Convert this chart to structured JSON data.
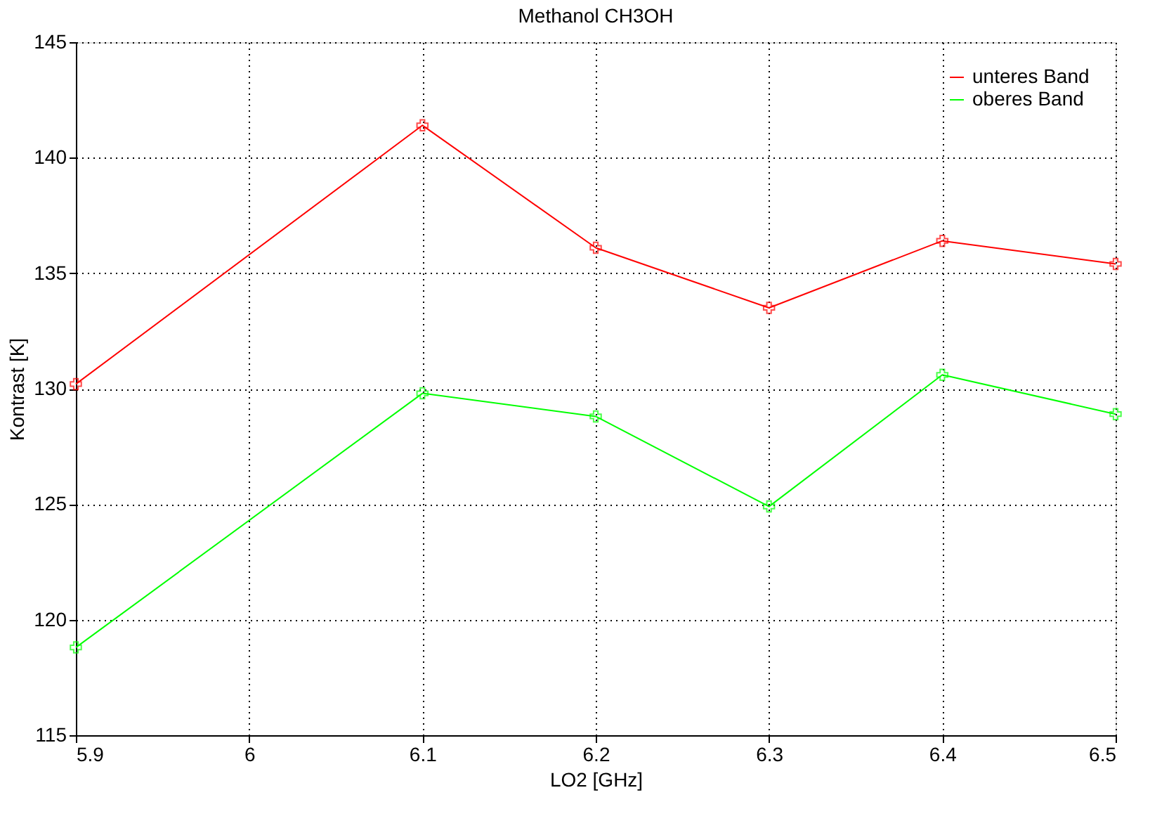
{
  "chart_data": {
    "type": "line",
    "title": "Methanol CH3OH",
    "xlabel": "LO2 [GHz]",
    "ylabel": "Kontrast [K]",
    "x": [
      5.9,
      6.1,
      6.2,
      6.3,
      6.4,
      6.5
    ],
    "series": [
      {
        "name": "unteres Band",
        "color": "#ff0000",
        "marker": "cross",
        "values": [
          130.2,
          141.4,
          136.1,
          133.5,
          136.4,
          135.4
        ]
      },
      {
        "name": "oberes Band",
        "color": "#00ff00",
        "marker": "cross",
        "values": [
          118.8,
          129.8,
          128.8,
          124.9,
          130.6,
          128.9
        ]
      }
    ],
    "xlim": [
      5.9,
      6.5
    ],
    "xticks": [
      5.9,
      6,
      6.1,
      6.2,
      6.3,
      6.4,
      6.5
    ],
    "ylim": [
      115,
      145
    ],
    "yticks": [
      115,
      120,
      125,
      130,
      135,
      140,
      145
    ],
    "grid": true,
    "line_style": "solid",
    "legend": "top right"
  }
}
